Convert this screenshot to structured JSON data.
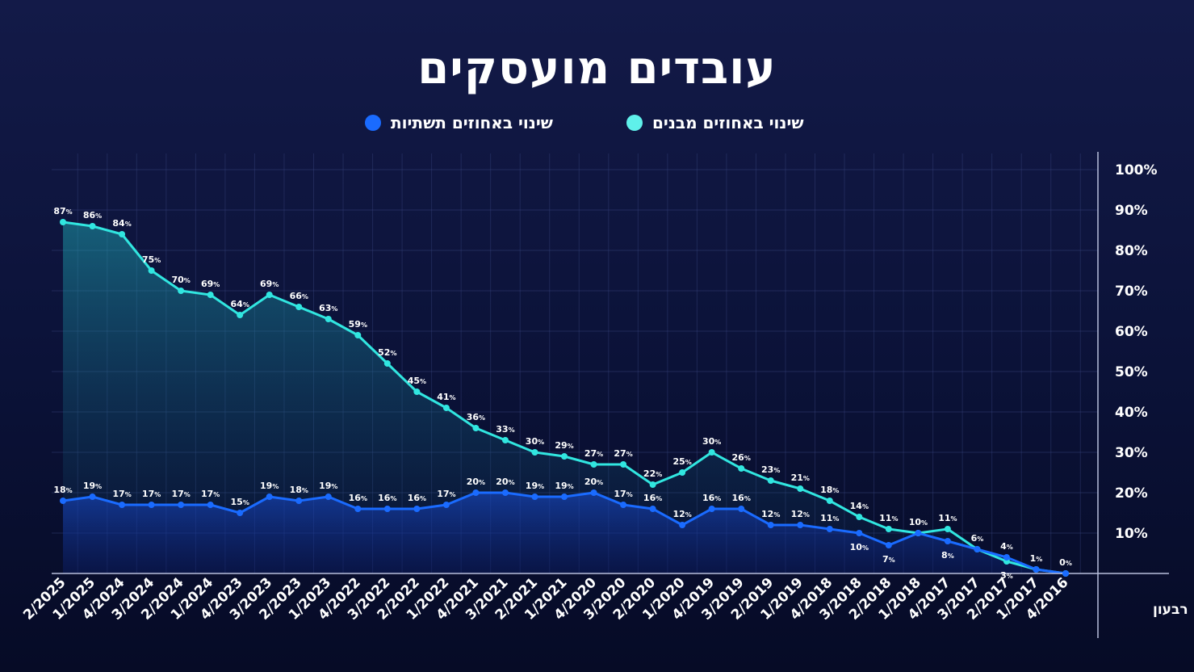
{
  "chart_data": {
    "type": "line",
    "title": "עובדים מועסקים",
    "xlabel": "רבעון",
    "ylabel": "",
    "ylim": [
      0,
      100
    ],
    "y_ticks": [
      "10%",
      "20%",
      "30%",
      "40%",
      "50%",
      "60%",
      "70%",
      "80%",
      "90%",
      "100%"
    ],
    "percent_sign": "%",
    "grid": true,
    "legend_position": "top-center",
    "categories": [
      "2/2025",
      "1/2025",
      "4/2024",
      "3/2024",
      "2/2024",
      "1/2024",
      "4/2023",
      "3/2023",
      "2/2023",
      "1/2023",
      "4/2022",
      "3/2022",
      "2/2022",
      "1/2022",
      "4/2021",
      "3/2021",
      "2/2021",
      "1/2021",
      "4/2020",
      "3/2020",
      "2/2020",
      "1/2020",
      "4/2019",
      "3/2019",
      "2/2019",
      "1/2019",
      "4/2018",
      "3/2018",
      "2/2018",
      "1/2018",
      "4/2017",
      "3/2017",
      "2/2017",
      "1/2017",
      "4/2016"
    ],
    "series": [
      {
        "name": "שינוי באחוזים מבנים",
        "color": "#31e6e0",
        "values": [
          87,
          86,
          84,
          75,
          70,
          69,
          64,
          69,
          66,
          63,
          59,
          52,
          45,
          41,
          36,
          33,
          30,
          29,
          27,
          27,
          22,
          25,
          30,
          26,
          23,
          21,
          18,
          14,
          11,
          10,
          11,
          6,
          3,
          1,
          0
        ]
      },
      {
        "name": "שינוי באחוזים תשתיות",
        "color": "#1a6bff",
        "values": [
          18,
          19,
          17,
          17,
          17,
          17,
          15,
          19,
          18,
          19,
          16,
          16,
          16,
          17,
          20,
          20,
          19,
          19,
          20,
          17,
          16,
          12,
          16,
          16,
          12,
          12,
          11,
          10,
          7,
          10,
          8,
          6,
          4,
          1,
          0
        ]
      }
    ]
  }
}
